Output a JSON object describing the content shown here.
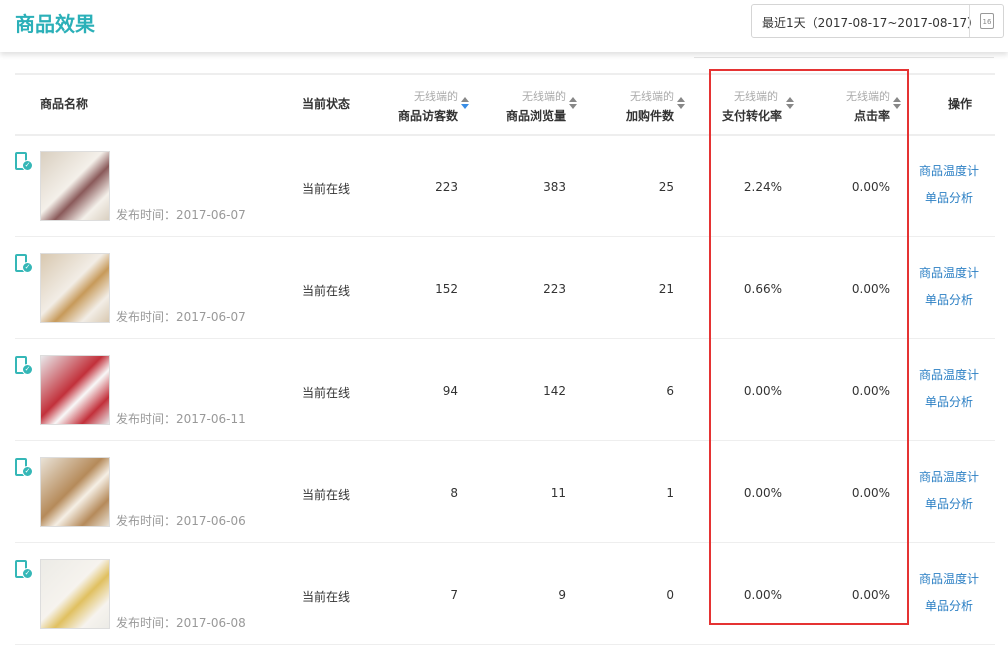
{
  "header": {
    "title": "商品效果",
    "date_range": "最近1天（2017-08-17~2017-08-17）",
    "calendar_day": "16"
  },
  "table": {
    "columns": [
      {
        "label": "商品名称"
      },
      {
        "label": "当前状态"
      },
      {
        "sub": "无线端的",
        "label": "商品访客数",
        "sort": "desc"
      },
      {
        "sub": "无线端的",
        "label": "商品浏览量"
      },
      {
        "sub": "无线端的",
        "label": "加购件数"
      },
      {
        "sub": "无线端的",
        "label": "支付转化率"
      },
      {
        "sub": "无线端的",
        "label": "点击率"
      },
      {
        "label": "操作"
      }
    ],
    "rows": [
      {
        "published": "发布时间：2017-06-07",
        "status": "当前在线",
        "visitors": "223",
        "views": "383",
        "cart": "25",
        "conversion": "2.24%",
        "ctr": "0.00%",
        "op1": "商品温度计",
        "op2": "单品分析",
        "img": [
          "#d9cfc0",
          "#f4f0ea",
          "#8a5a5a"
        ]
      },
      {
        "published": "发布时间：2017-06-07",
        "status": "当前在线",
        "visitors": "152",
        "views": "223",
        "cart": "21",
        "conversion": "0.66%",
        "ctr": "0.00%",
        "op1": "商品温度计",
        "op2": "单品分析",
        "img": [
          "#d8c8b0",
          "#f2ede6",
          "#c79a5a"
        ]
      },
      {
        "published": "发布时间：2017-06-11",
        "status": "当前在线",
        "visitors": "94",
        "views": "142",
        "cart": "6",
        "conversion": "0.00%",
        "ctr": "0.00%",
        "op1": "商品温度计",
        "op2": "单品分析",
        "img": [
          "#e8e8ea",
          "#c2303a",
          "#f8f8f8"
        ]
      },
      {
        "published": "发布时间：2017-06-06",
        "status": "当前在线",
        "visitors": "8",
        "views": "11",
        "cart": "1",
        "conversion": "0.00%",
        "ctr": "0.00%",
        "op1": "商品温度计",
        "op2": "单品分析",
        "img": [
          "#e9e2d6",
          "#b58a5a",
          "#f5efe5"
        ]
      },
      {
        "published": "发布时间：2017-06-08",
        "status": "当前在线",
        "visitors": "7",
        "views": "9",
        "cart": "0",
        "conversion": "0.00%",
        "ctr": "0.00%",
        "op1": "商品温度计",
        "op2": "单品分析",
        "img": [
          "#ecebe6",
          "#f6f3ee",
          "#e0c060"
        ]
      }
    ]
  },
  "colors": {
    "brand": "#2bb0b8",
    "link": "#2b7fc4",
    "highlight": "#e53333"
  }
}
